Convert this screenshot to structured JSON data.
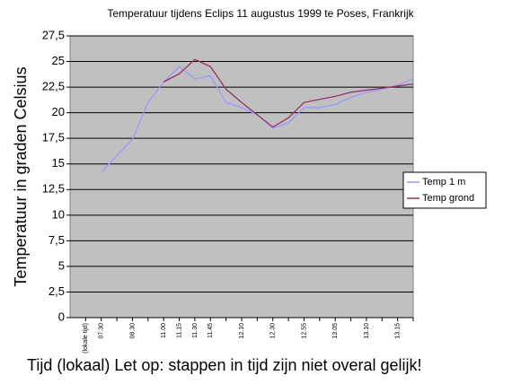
{
  "chart_data": {
    "type": "line",
    "title": "Temperatuur tijdens Eclips 11 augustus 1999 te Poses, Frankrijk",
    "y_label": "Temperatuur in graden Celsius",
    "x_label": "Tijd (lokaal) Let op: stappen in tijd zijn niet overal gelijk!",
    "categories": [
      "(lokale tijd)",
      "07.30",
      null,
      "08.30",
      null,
      "11.00",
      "11.15",
      "11.30",
      "11.45",
      null,
      "12.10",
      null,
      "12.30",
      null,
      "12.55",
      null,
      "13.05",
      null,
      "13.10",
      null,
      "13.15",
      null
    ],
    "series": [
      {
        "name": "Temp 1 m",
        "color": "#9999ff",
        "values": [
          null,
          14.2,
          15.8,
          17.4,
          21,
          23,
          24.5,
          23.3,
          23.6,
          21,
          20.5,
          19.8,
          18.5,
          19,
          20.5,
          20.5,
          20.8,
          21.5,
          22,
          22.3,
          22.7,
          23.3
        ]
      },
      {
        "name": "Temp grond",
        "color": "#993366",
        "values": [
          null,
          null,
          null,
          null,
          null,
          23,
          23.8,
          25.2,
          24.5,
          22.3,
          21,
          19.8,
          18.6,
          19.5,
          21,
          21.3,
          21.6,
          22,
          22.2,
          22.4,
          22.6,
          22.8
        ]
      }
    ],
    "ylim": [
      0,
      27.5
    ],
    "yticks": [
      0,
      {
        "value": 2.5,
        "label": "2,5"
      },
      5,
      {
        "value": 7.5,
        "label": "7,5"
      },
      10,
      {
        "value": 12.5,
        "label": "12,5"
      },
      15,
      {
        "value": 17.5,
        "label": "17,5"
      },
      20,
      {
        "value": 22.5,
        "label": "22,5"
      },
      25,
      {
        "value": 27.5,
        "label": "27,5"
      }
    ],
    "grid": true,
    "legend": "right"
  }
}
